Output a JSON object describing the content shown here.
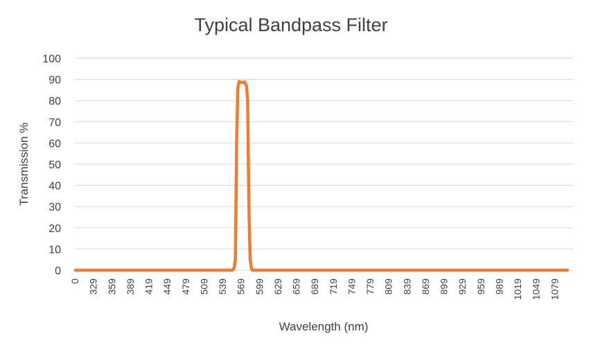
{
  "chart_data": {
    "type": "line",
    "title": "Typical Bandpass Filter",
    "xlabel": "Wavelength (nm)",
    "ylabel": "Transmission %",
    "ylim": [
      0,
      100
    ],
    "yticks": [
      "0",
      "10",
      "20",
      "30",
      "40",
      "50",
      "60",
      "70",
      "80",
      "90",
      "100"
    ],
    "grid": true,
    "legend": "none",
    "categories": [
      "0",
      "329",
      "359",
      "389",
      "419",
      "449",
      "479",
      "509",
      "539",
      "569",
      "599",
      "629",
      "659",
      "689",
      "719",
      "749",
      "779",
      "809",
      "839",
      "869",
      "899",
      "929",
      "959",
      "989",
      "1019",
      "1049",
      "1079"
    ],
    "series": [
      {
        "color": "#ed7d31",
        "x": [
          300,
          555,
          558,
          560,
          562,
          564,
          566,
          570,
          575,
          578,
          580,
          582,
          584,
          586,
          588,
          1100
        ],
        "y": [
          0,
          0,
          1,
          5,
          60,
          86,
          89,
          88.5,
          88.8,
          87,
          80,
          30,
          5,
          1,
          0,
          0
        ]
      }
    ]
  }
}
